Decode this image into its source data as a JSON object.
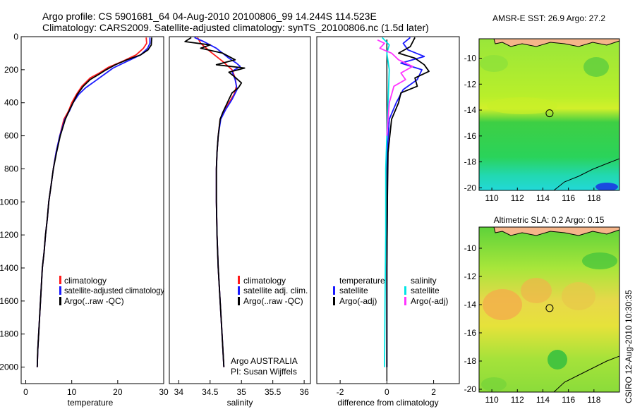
{
  "title": {
    "line1": "Argo profile: CS 5901681_64 04-Aug-2010 20100806_99 14.244S 114.523E",
    "line2": "Climatology: CARS2009. Satellite-adjusted climatology: synTS_20100806.nc (1.5d later)"
  },
  "side_stamp": "CSIRO 12-Aug-2010 10:30:35",
  "colors": {
    "climatology": "#ff1a1a",
    "satellite": "#1a1aff",
    "argo": "#000000",
    "salinity_satellite": "#00e5e5",
    "salinity_argo": "#ff33ff"
  },
  "chart_data": [
    {
      "type": "line",
      "id": "temperature_panel",
      "xlabel": "temperature",
      "ylabel": "",
      "xlim": [
        -1,
        30
      ],
      "ylim": [
        2100,
        0
      ],
      "y_inverted": true,
      "xticks": [
        0,
        10,
        20,
        30
      ],
      "yticks": [
        0,
        200,
        400,
        600,
        800,
        1000,
        1200,
        1400,
        1600,
        1800,
        2000
      ],
      "legend": {
        "placement": "lower-right",
        "entries": [
          {
            "label": "climatology",
            "color": "#ff1a1a"
          },
          {
            "label": "satellite-adjusted climatology",
            "color": "#1a1aff"
          },
          {
            "label": "Argo(..raw -QC)",
            "color": "#000000"
          }
        ]
      },
      "series": [
        {
          "key": "climatology",
          "color": "#ff1a1a",
          "points": [
            [
              26.2,
              5
            ],
            [
              26.3,
              40
            ],
            [
              25.6,
              70
            ],
            [
              24,
              110
            ],
            [
              21,
              150
            ],
            [
              18,
              185
            ],
            [
              16,
              220
            ],
            [
              14,
              250
            ],
            [
              12.2,
              300
            ],
            [
              11,
              350
            ],
            [
              10,
              400
            ],
            [
              9.3,
              450
            ],
            [
              8.3,
              500
            ],
            [
              7.4,
              600
            ],
            [
              6.6,
              700
            ],
            [
              6,
              800
            ],
            [
              5.5,
              900
            ],
            [
              5,
              1000
            ],
            [
              4.7,
              1100
            ],
            [
              4.3,
              1200
            ],
            [
              4,
              1300
            ],
            [
              3.6,
              1400
            ],
            [
              3.4,
              1500
            ],
            [
              3.2,
              1600
            ],
            [
              3,
              1700
            ],
            [
              2.8,
              1800
            ],
            [
              2.6,
              1900
            ],
            [
              2.5,
              2000
            ]
          ]
        },
        {
          "key": "satellite",
          "color": "#1a1aff",
          "points": [
            [
              27,
              5
            ],
            [
              27,
              40
            ],
            [
              26.5,
              70
            ],
            [
              25,
              110
            ],
            [
              22,
              150
            ],
            [
              19,
              190
            ],
            [
              17,
              230
            ],
            [
              15,
              270
            ],
            [
              13,
              310
            ],
            [
              11.5,
              350
            ],
            [
              10.3,
              400
            ],
            [
              9.5,
              450
            ],
            [
              8.5,
              500
            ],
            [
              7.4,
              600
            ],
            [
              6.6,
              700
            ],
            [
              6,
              800
            ],
            [
              5.5,
              900
            ],
            [
              5,
              1000
            ],
            [
              4.7,
              1100
            ],
            [
              4.3,
              1200
            ],
            [
              4,
              1300
            ],
            [
              3.6,
              1400
            ],
            [
              3.4,
              1500
            ],
            [
              3.2,
              1600
            ],
            [
              3,
              1700
            ],
            [
              2.8,
              1800
            ],
            [
              2.6,
              1900
            ],
            [
              2.5,
              2000
            ]
          ]
        },
        {
          "key": "argo",
          "color": "#000000",
          "points": [
            [
              27.4,
              5
            ],
            [
              27.3,
              50
            ],
            [
              26.6,
              80
            ],
            [
              25,
              110
            ],
            [
              22,
              140
            ],
            [
              19.5,
              170
            ],
            [
              17.5,
              200
            ],
            [
              15.8,
              230
            ],
            [
              14,
              260
            ],
            [
              12.5,
              300
            ],
            [
              11.2,
              350
            ],
            [
              10.3,
              400
            ],
            [
              9.4,
              450
            ],
            [
              8.6,
              500
            ],
            [
              7.5,
              600
            ],
            [
              6.7,
              700
            ],
            [
              6,
              800
            ],
            [
              5.5,
              900
            ],
            [
              5,
              1000
            ],
            [
              4.7,
              1100
            ],
            [
              4.3,
              1200
            ],
            [
              4,
              1300
            ],
            [
              3.6,
              1400
            ],
            [
              3.4,
              1500
            ],
            [
              3.2,
              1600
            ],
            [
              3,
              1700
            ],
            [
              2.8,
              1800
            ],
            [
              2.6,
              1900
            ],
            [
              2.5,
              2000
            ]
          ]
        }
      ]
    },
    {
      "type": "line",
      "id": "salinity_panel",
      "xlabel": "salinity",
      "ylabel": "",
      "xlim": [
        33.85,
        36.1
      ],
      "ylim": [
        2100,
        0
      ],
      "y_inverted": true,
      "xticks": [
        34,
        34.5,
        35,
        35.5,
        36
      ],
      "legend": {
        "placement": "lower-right",
        "entries": [
          {
            "label": "climatology",
            "color": "#ff1a1a"
          },
          {
            "label": "satellite adj. clim.",
            "color": "#1a1aff"
          },
          {
            "label": "Argo(..raw -QC)",
            "color": "#000000"
          }
        ]
      },
      "annotation": [
        "Argo AUSTRALIA",
        "PI: Susan Wijffels"
      ],
      "series": [
        {
          "key": "climatology",
          "color": "#ff1a1a",
          "points": [
            [
              34.3,
              5
            ],
            [
              34.35,
              40
            ],
            [
              34.5,
              90
            ],
            [
              34.7,
              150
            ],
            [
              34.85,
              200
            ],
            [
              34.9,
              250
            ],
            [
              34.92,
              300
            ],
            [
              34.88,
              350
            ],
            [
              34.8,
              400
            ],
            [
              34.72,
              450
            ],
            [
              34.66,
              500
            ],
            [
              34.63,
              600
            ],
            [
              34.61,
              700
            ],
            [
              34.6,
              800
            ],
            [
              34.6,
              1000
            ],
            [
              34.61,
              1200
            ],
            [
              34.63,
              1400
            ],
            [
              34.66,
              1600
            ],
            [
              34.69,
              1800
            ],
            [
              34.72,
              2000
            ]
          ]
        },
        {
          "key": "satellite",
          "color": "#1a1aff",
          "points": [
            [
              34.25,
              5
            ],
            [
              34.4,
              30
            ],
            [
              34.6,
              70
            ],
            [
              34.8,
              130
            ],
            [
              34.92,
              160
            ],
            [
              34.98,
              180
            ],
            [
              34.85,
              210
            ],
            [
              34.9,
              260
            ],
            [
              34.93,
              320
            ],
            [
              34.85,
              380
            ],
            [
              34.75,
              440
            ],
            [
              34.67,
              500
            ],
            [
              34.63,
              600
            ],
            [
              34.61,
              700
            ],
            [
              34.6,
              800
            ],
            [
              34.6,
              1000
            ],
            [
              34.61,
              1200
            ],
            [
              34.63,
              1400
            ],
            [
              34.66,
              1600
            ],
            [
              34.69,
              1800
            ],
            [
              34.72,
              2000
            ]
          ]
        },
        {
          "key": "argo",
          "color": "#000000",
          "points": [
            [
              34.2,
              5
            ],
            [
              34.1,
              30
            ],
            [
              34.5,
              50
            ],
            [
              34.35,
              70
            ],
            [
              34.7,
              100
            ],
            [
              34.9,
              140
            ],
            [
              34.6,
              170
            ],
            [
              35.05,
              190
            ],
            [
              34.8,
              215
            ],
            [
              34.88,
              240
            ],
            [
              35.0,
              280
            ],
            [
              34.95,
              310
            ],
            [
              34.85,
              340
            ],
            [
              34.8,
              380
            ],
            [
              34.75,
              420
            ],
            [
              34.7,
              460
            ],
            [
              34.66,
              500
            ],
            [
              34.63,
              600
            ],
            [
              34.61,
              700
            ],
            [
              34.6,
              800
            ],
            [
              34.6,
              1000
            ],
            [
              34.61,
              1200
            ],
            [
              34.63,
              1400
            ],
            [
              34.66,
              1600
            ],
            [
              34.69,
              1800
            ],
            [
              34.72,
              2000
            ]
          ]
        }
      ]
    },
    {
      "type": "line",
      "id": "difference_panel",
      "xlabel": "difference from climatology",
      "ylabel": "",
      "xlim": [
        -3,
        3.1
      ],
      "ylim": [
        2100,
        0
      ],
      "y_inverted": true,
      "xticks": [
        -2,
        0,
        2
      ],
      "legend": {
        "placement": "lower",
        "left_entries": [
          {
            "label": "temperature",
            "color": ""
          },
          {
            "label": "satellite",
            "color": "#1a1aff"
          },
          {
            "label": "Argo(-adj)",
            "color": "#000000"
          }
        ],
        "right_entries": [
          {
            "label": "salinity",
            "color": ""
          },
          {
            "label": "satellite",
            "color": "#00e5e5"
          },
          {
            "label": "Argo(-adj)",
            "color": "#ff33ff"
          }
        ]
      },
      "series": [
        {
          "key": "temp_satellite",
          "color": "#1a1aff",
          "points": [
            [
              1,
              5
            ],
            [
              0.7,
              40
            ],
            [
              0.9,
              80
            ],
            [
              1.6,
              120
            ],
            [
              0.6,
              160
            ],
            [
              1.5,
              200
            ],
            [
              1.3,
              260
            ],
            [
              0.7,
              320
            ],
            [
              0.4,
              400
            ],
            [
              0.1,
              500
            ],
            [
              0.02,
              700
            ],
            [
              0.02,
              1000
            ],
            [
              0,
              1400
            ],
            [
              0,
              2000
            ]
          ]
        },
        {
          "key": "temp_argo",
          "color": "#000000",
          "points": [
            [
              1.2,
              5
            ],
            [
              1.0,
              60
            ],
            [
              0.5,
              100
            ],
            [
              1.2,
              130
            ],
            [
              1.6,
              170
            ],
            [
              1.8,
              210
            ],
            [
              1.2,
              250
            ],
            [
              1.3,
              300
            ],
            [
              0.6,
              340
            ],
            [
              0.5,
              400
            ],
            [
              0.2,
              500
            ],
            [
              0.05,
              700
            ],
            [
              0.02,
              1000
            ],
            [
              0,
              1400
            ],
            [
              0,
              2000
            ]
          ]
        },
        {
          "key": "sal_satellite",
          "color": "#00e5e5",
          "points": [
            [
              -0.2,
              5
            ],
            [
              0.1,
              50
            ],
            [
              0,
              100
            ],
            [
              0.1,
              200
            ],
            [
              0.05,
              400
            ],
            [
              0,
              600
            ],
            [
              -0.05,
              800
            ],
            [
              -0.05,
              1200
            ],
            [
              -0.08,
              1600
            ],
            [
              -0.1,
              2000
            ]
          ]
        },
        {
          "key": "sal_argo",
          "color": "#ff33ff",
          "points": [
            [
              -0.4,
              20
            ],
            [
              -0.1,
              40
            ],
            [
              -0.3,
              70
            ],
            [
              0.2,
              100
            ],
            [
              0.5,
              140
            ],
            [
              1.1,
              180
            ],
            [
              0.6,
              220
            ],
            [
              0.8,
              260
            ],
            [
              0.3,
              300
            ],
            [
              0.1,
              400
            ],
            [
              0,
              600
            ]
          ]
        }
      ]
    },
    {
      "type": "heatmap",
      "id": "sst_map",
      "title": "AMSR-E SST: 26.9 Argo: 27.2",
      "xlim": [
        109,
        120
      ],
      "ylim": [
        -20.2,
        -8.5
      ],
      "xticks": [
        110,
        112,
        114,
        116,
        118
      ],
      "yticks": [
        -10,
        -12,
        -14,
        -16,
        -18,
        -20
      ],
      "marker": {
        "lon": 114.523,
        "lat": -14.244
      }
    },
    {
      "type": "heatmap",
      "id": "sla_map",
      "title": "Altimetric SLA: 0.2 Argo: 0.15",
      "xlim": [
        109,
        120
      ],
      "ylim": [
        -20.2,
        -8.5
      ],
      "xticks": [
        110,
        112,
        114,
        116,
        118
      ],
      "yticks": [
        -10,
        -12,
        -14,
        -16,
        -18,
        -20
      ],
      "marker": {
        "lon": 114.523,
        "lat": -14.244
      }
    }
  ]
}
